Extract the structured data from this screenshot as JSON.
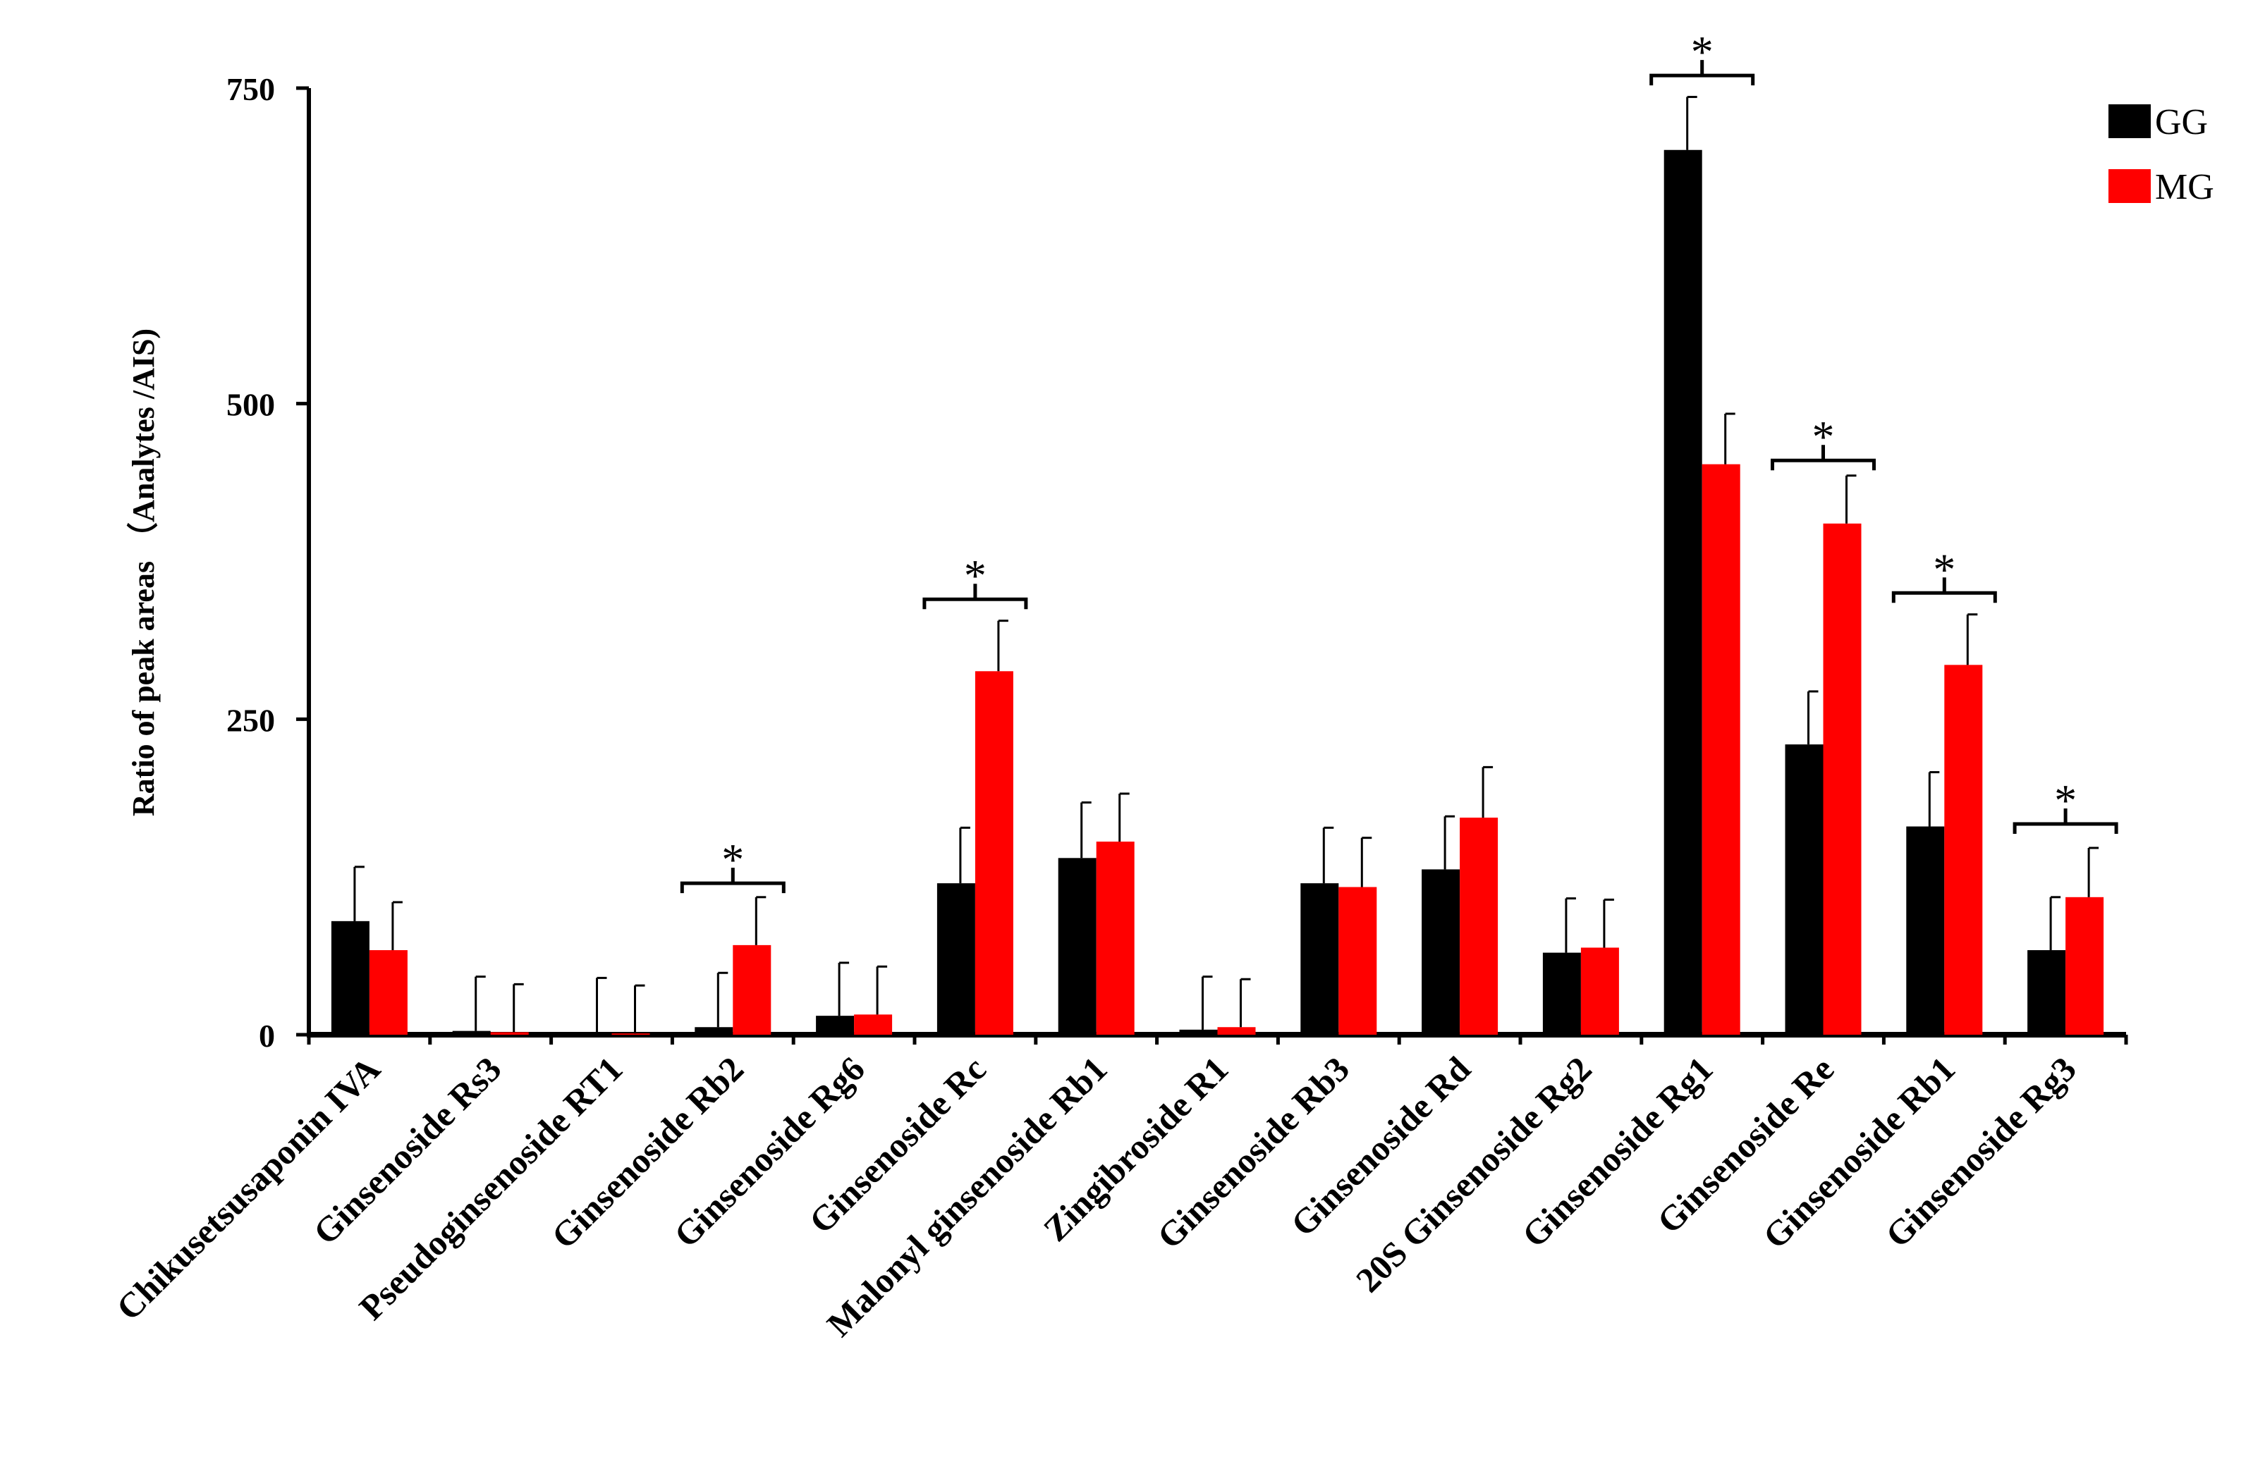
{
  "chart_data": {
    "type": "bar",
    "title": "",
    "xlabel": "",
    "ylabel": "Ratio of  peak areas   （Analytes /AIS)",
    "ylim": [
      0,
      750
    ],
    "yticks": [
      "0",
      "250",
      "500",
      "750"
    ],
    "ytick_values": [
      0,
      250,
      500,
      750
    ],
    "legend_position": "top-right",
    "colors": {
      "GG": "#000000",
      "MG": "#ff0000"
    },
    "categories": [
      "Chikusetsusaponin IVA",
      "Ginsenoside Rs3",
      "Pseudoginsenoside RT1",
      "Ginsenoside Rb2",
      "Ginsenoside Rg6",
      "Ginsenoside Rc",
      "Malonyl ginsenoside Rb1",
      "Zingibroside R1",
      "Ginsenoside Rb3",
      "Ginsenoside Rd",
      "20S Ginsenoside Rg2",
      "Ginsenoside Rg1",
      "Ginsenoside Re",
      "Ginsenoside Rb1",
      "Ginsenoside Rg3"
    ],
    "series": [
      {
        "name": "GG",
        "values": [
          90,
          3,
          2,
          6,
          15,
          120,
          140,
          4,
          120,
          131,
          65,
          701,
          230,
          165,
          67
        ],
        "errors": [
          43,
          43,
          43,
          43,
          42,
          44,
          44,
          42,
          44,
          42,
          43,
          42,
          42,
          43,
          42
        ]
      },
      {
        "name": "MG",
        "values": [
          67,
          2,
          1,
          71,
          16,
          288,
          153,
          6,
          117,
          172,
          69,
          452,
          405,
          293,
          109
        ],
        "errors": [
          38,
          38,
          38,
          38,
          38,
          40,
          38,
          38,
          39,
          40,
          38,
          40,
          38,
          40,
          39
        ]
      }
    ],
    "significance": {
      "marker": "*",
      "categories": [
        "Ginsenoside Rb2",
        "Ginsenoside Rc",
        "Ginsenoside Rg1",
        "Ginsenoside Re",
        "Ginsenoside Rb1",
        "Ginsenoside Rg3"
      ],
      "bracket_values": [
        120,
        345,
        760,
        455,
        350,
        167
      ]
    }
  }
}
